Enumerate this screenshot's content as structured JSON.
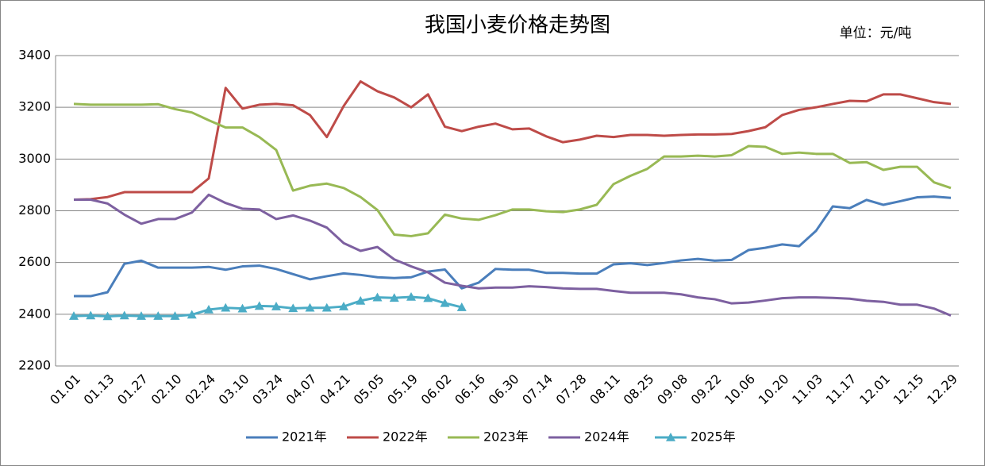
{
  "chart_data": {
    "type": "line",
    "title": "我国小麦价格走势图",
    "unit": "单位：元/吨",
    "categories": [
      "01.01",
      null,
      "01.13",
      null,
      "01.27",
      null,
      "02.10",
      null,
      "02.24",
      null,
      "03.10",
      null,
      "03.24",
      null,
      "04.07",
      null,
      "04.21",
      null,
      "05.05",
      null,
      "05.19",
      null,
      "06.02",
      null,
      "06.16",
      null,
      "06.30",
      null,
      "07.14",
      null,
      "07.28",
      null,
      "08.11",
      null,
      "08.25",
      null,
      "09.08",
      null,
      "09.22",
      null,
      "10.06",
      null,
      "10.20",
      null,
      "11.03",
      null,
      "11.17",
      null,
      "12.01",
      null,
      "12.15",
      null,
      "12.29"
    ],
    "ylim": [
      2200,
      3400
    ],
    "yticks": [
      2200,
      2400,
      2600,
      2800,
      3000,
      3200,
      3400
    ],
    "grid": true,
    "legend": "bottom",
    "series": [
      {
        "name": "2021年",
        "color": "#4a7ebb",
        "values": [
          2470,
          2470,
          2485,
          2595,
          2607,
          2580,
          2580,
          2580,
          2583,
          2572,
          2585,
          2588,
          2575,
          2555,
          2535,
          2547,
          2558,
          2552,
          2543,
          2540,
          2543,
          2565,
          2573,
          2500,
          2522,
          2575,
          2572,
          2572,
          2560,
          2560,
          2557,
          2557,
          2593,
          2597,
          2590,
          2598,
          2608,
          2614,
          2607,
          2610,
          2648,
          2657,
          2670,
          2663,
          2722,
          2817,
          2810,
          2842,
          2823,
          2837,
          2852,
          2855,
          2850
        ]
      },
      {
        "name": "2022年",
        "color": "#be4b48",
        "values": [
          2843,
          2845,
          2853,
          2872,
          2872,
          2872,
          2872,
          2872,
          2925,
          3275,
          3195,
          3210,
          3213,
          3208,
          3170,
          3085,
          3205,
          3300,
          3262,
          3238,
          3200,
          3250,
          3125,
          3108,
          3125,
          3137,
          3115,
          3118,
          3088,
          3065,
          3075,
          3090,
          3085,
          3093,
          3093,
          3090,
          3093,
          3095,
          3095,
          3097,
          3108,
          3123,
          3170,
          3190,
          3200,
          3213,
          3225,
          3223,
          3250,
          3250,
          3235,
          3220,
          3213
        ]
      },
      {
        "name": "2023年",
        "color": "#98b954",
        "values": [
          3213,
          3210,
          3210,
          3210,
          3210,
          3212,
          3193,
          3180,
          3150,
          3122,
          3122,
          3085,
          3035,
          2878,
          2897,
          2905,
          2888,
          2853,
          2803,
          2708,
          2702,
          2713,
          2785,
          2770,
          2765,
          2783,
          2805,
          2805,
          2798,
          2795,
          2805,
          2823,
          2903,
          2935,
          2962,
          3010,
          3010,
          3013,
          3010,
          3015,
          3050,
          3047,
          3020,
          3025,
          3020,
          3020,
          2985,
          2988,
          2958,
          2970,
          2970,
          2910,
          2888
        ]
      },
      {
        "name": "2024年",
        "color": "#7d60a0",
        "values": [
          2843,
          2843,
          2828,
          2785,
          2750,
          2768,
          2768,
          2793,
          2862,
          2830,
          2808,
          2805,
          2768,
          2782,
          2762,
          2735,
          2675,
          2645,
          2660,
          2612,
          2585,
          2562,
          2522,
          2510,
          2500,
          2503,
          2503,
          2508,
          2505,
          2500,
          2498,
          2498,
          2490,
          2483,
          2483,
          2483,
          2477,
          2465,
          2458,
          2442,
          2445,
          2453,
          2462,
          2465,
          2465,
          2463,
          2460,
          2452,
          2448,
          2437,
          2437,
          2422,
          2395
        ]
      },
      {
        "name": "2025年",
        "color": "#4bacc6",
        "marker": "triangle",
        "values": [
          2393,
          2395,
          2392,
          2395,
          2393,
          2393,
          2393,
          2398,
          2418,
          2425,
          2422,
          2432,
          2430,
          2423,
          2425,
          2425,
          2430,
          2452,
          2465,
          2463,
          2467,
          2462,
          2443,
          2427,
          null,
          null,
          null,
          null,
          null,
          null,
          null,
          null,
          null,
          null,
          null,
          null,
          null,
          null,
          null,
          null,
          null,
          null,
          null,
          null,
          null,
          null,
          null,
          null,
          null,
          null,
          null,
          null,
          null
        ]
      }
    ]
  }
}
